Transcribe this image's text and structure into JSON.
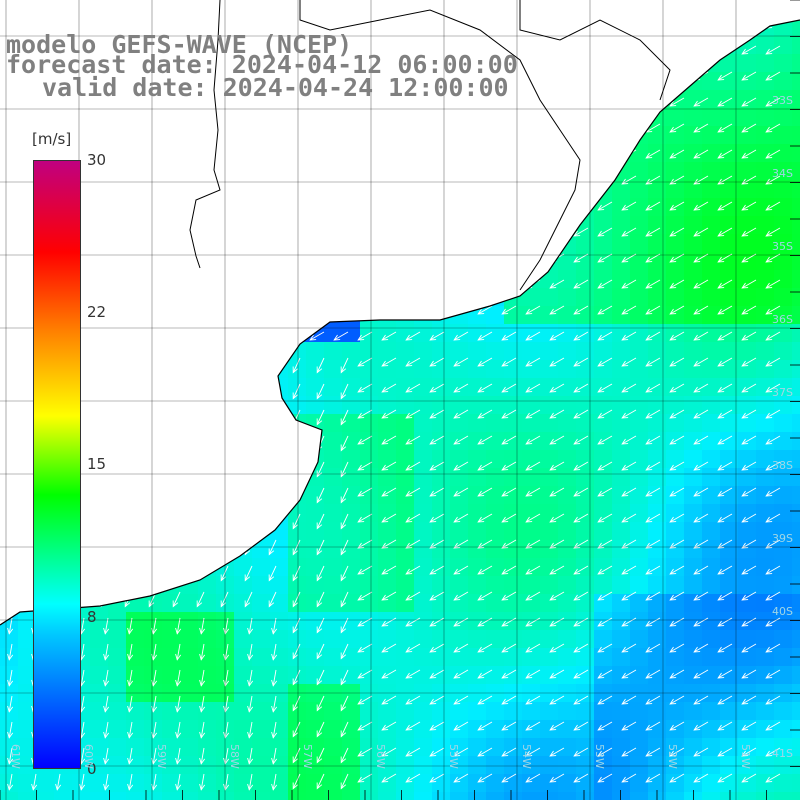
{
  "title": {
    "line1": "modelo GEFS-WAVE (NCEP)",
    "line2": "forecast date: 2024-04-12 06:00:00",
    "line3": "valid date: 2024-04-24 12:00:00"
  },
  "colorbar": {
    "unit": "[m/s]",
    "ticks": [
      "30",
      "22",
      "15",
      "8",
      "0"
    ],
    "colors": [
      "#0000ff",
      "#00c8ff",
      "#00ffff",
      "#00ff00",
      "#ffff00",
      "#ff8000",
      "#ff0000",
      "#c00080"
    ]
  },
  "lat_labels": [
    "33S",
    "34S",
    "35S",
    "36S",
    "37S",
    "38S",
    "39S",
    "40S",
    "41S"
  ],
  "lon_labels": [
    "61W",
    "60W",
    "59W",
    "58W",
    "57W",
    "56W",
    "55W",
    "54W",
    "53W",
    "52W",
    "51W"
  ],
  "colors": {
    "land": "#ffffff",
    "grid": "#000000",
    "coast": "#000000",
    "arrow": "#ffffff"
  }
}
